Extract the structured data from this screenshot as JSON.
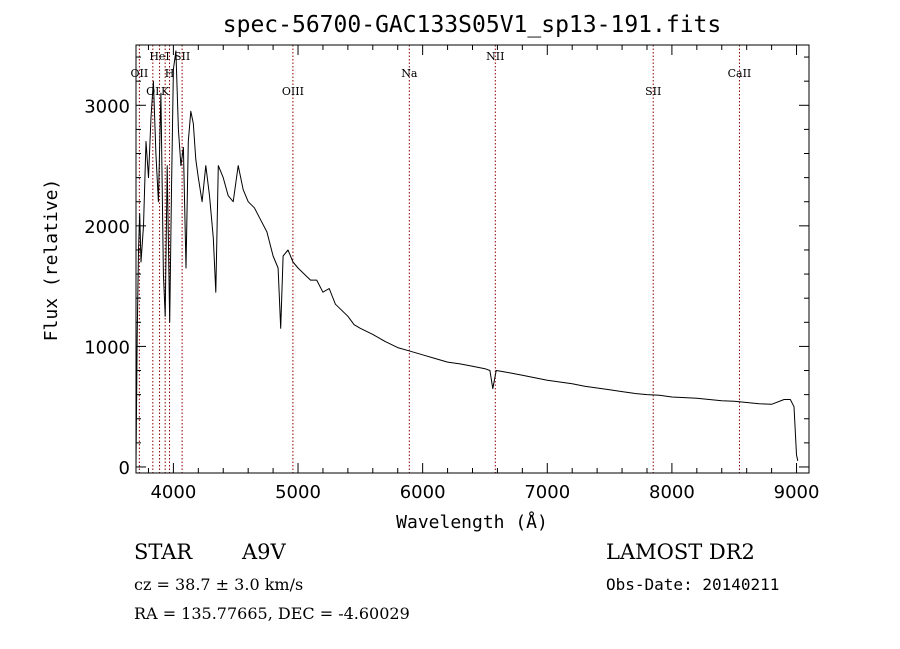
{
  "chart_data": {
    "type": "line",
    "title": "spec-56700-GAC133S05V1_sp13-191.fits",
    "xlabel": "Wavelength (Å)",
    "ylabel": "Flux (relative)",
    "xlim": [
      3700,
      9100
    ],
    "ylim": [
      -50,
      3500
    ],
    "xticks": [
      4000,
      5000,
      6000,
      7000,
      8000,
      9000
    ],
    "yticks": [
      0,
      1000,
      2000,
      3000
    ],
    "grid": false,
    "line_color": "#000000",
    "marker_color": "#8b0000",
    "lines": [
      {
        "name": "OII",
        "x": 3727,
        "row": 1
      },
      {
        "name": "OI",
        "x": 3835,
        "row": 2
      },
      {
        "name": "HeI",
        "x": 3889,
        "row": 0
      },
      {
        "name": "K",
        "x": 3934,
        "row": 2
      },
      {
        "name": "H",
        "x": 3969,
        "row": 1
      },
      {
        "name": "SII",
        "x": 4070,
        "row": 0
      },
      {
        "name": "OIII",
        "x": 4959,
        "row": 2
      },
      {
        "name": "Na",
        "x": 5893,
        "row": 1
      },
      {
        "name": "NII",
        "x": 6583,
        "row": 0
      },
      {
        "name": "SII",
        "x": 7850,
        "row": 2
      },
      {
        "name": "CaII",
        "x": 8542,
        "row": 1
      }
    ],
    "series": [
      {
        "x": [
          3700,
          3710,
          3720,
          3730,
          3740,
          3760,
          3780,
          3800,
          3820,
          3840,
          3860,
          3880,
          3900,
          3920,
          3934,
          3950,
          3970,
          3985,
          4000,
          4020,
          4040,
          4060,
          4080,
          4101,
          4120,
          4140,
          4160,
          4180,
          4200,
          4230,
          4260,
          4290,
          4320,
          4340,
          4360,
          4400,
          4440,
          4480,
          4520,
          4560,
          4600,
          4650,
          4700,
          4750,
          4800,
          4840,
          4861,
          4880,
          4920,
          4960,
          5000,
          5050,
          5100,
          5150,
          5200,
          5250,
          5300,
          5350,
          5400,
          5450,
          5500,
          5600,
          5700,
          5800,
          5900,
          6000,
          6100,
          6200,
          6300,
          6400,
          6500,
          6540,
          6563,
          6590,
          6650,
          6700,
          6800,
          6900,
          7000,
          7100,
          7200,
          7300,
          7400,
          7500,
          7600,
          7700,
          7800,
          7900,
          8000,
          8100,
          8200,
          8300,
          8400,
          8500,
          8600,
          8700,
          8800,
          8900,
          8950,
          8980,
          9000,
          9010
        ],
        "y": [
          0,
          1100,
          1800,
          2100,
          1700,
          2000,
          2700,
          2400,
          2900,
          3200,
          2600,
          2200,
          3100,
          1600,
          1250,
          2500,
          1200,
          2300,
          3300,
          3450,
          2800,
          2500,
          2650,
          1650,
          2700,
          2950,
          2850,
          2550,
          2400,
          2200,
          2500,
          2250,
          1900,
          1450,
          2500,
          2400,
          2250,
          2200,
          2500,
          2300,
          2200,
          2150,
          2050,
          1950,
          1750,
          1650,
          1150,
          1750,
          1800,
          1700,
          1650,
          1600,
          1550,
          1550,
          1450,
          1480,
          1350,
          1300,
          1250,
          1180,
          1150,
          1100,
          1040,
          990,
          960,
          930,
          900,
          870,
          855,
          835,
          815,
          800,
          650,
          800,
          790,
          780,
          760,
          740,
          720,
          705,
          690,
          670,
          655,
          640,
          625,
          610,
          600,
          595,
          580,
          575,
          570,
          560,
          550,
          545,
          535,
          525,
          520,
          560,
          560,
          500,
          100,
          50
        ]
      }
    ]
  },
  "footer": {
    "class": "STAR",
    "subclass": "A9V",
    "survey": "LAMOST DR2",
    "cz": "cz = 38.7 ± 3.0 km/s",
    "obs_date": "Obs-Date: 20140211",
    "radec": "RA = 135.77665, DEC =  -4.60029"
  }
}
